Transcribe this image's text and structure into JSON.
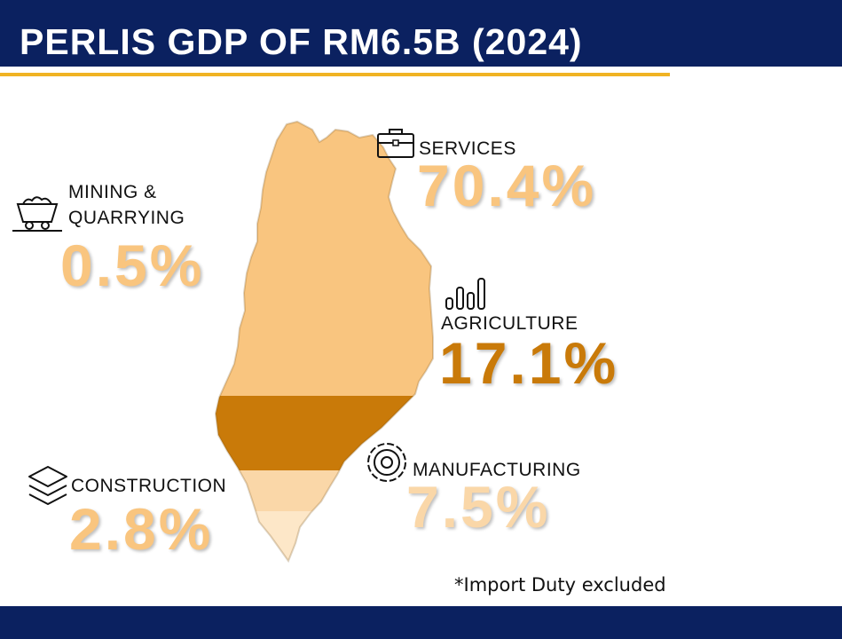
{
  "title": "PERLIS GDP OF RM6.5B (2024)",
  "note": "*Import Duty excluded",
  "colors": {
    "navy": "#0b2160",
    "gold_line": "#f0b323",
    "services": "#f9c57f",
    "agriculture": "#c97a09",
    "manufacturing": "#fad7a8",
    "construction": "#fde7c8",
    "mining": "#f9c57f"
  },
  "chart_data": {
    "type": "pie",
    "title": "PERLIS GDP OF RM6.5B (2024)",
    "unit": "%",
    "categories": [
      "SERVICES",
      "AGRICULTURE",
      "MANUFACTURING",
      "CONSTRUCTION",
      "MINING & QUARRYING"
    ],
    "values": [
      70.4,
      17.1,
      7.5,
      2.8,
      0.5
    ],
    "value_labels": [
      "70.4%",
      "17.1%",
      "7.5%",
      "2.8%",
      "0.5%"
    ],
    "annotation": "*Import Duty excluded"
  },
  "sectors": {
    "services": {
      "label": "SERVICES",
      "value": "70.4%",
      "icon": "briefcase-icon"
    },
    "agriculture": {
      "label": "AGRICULTURE",
      "value": "17.1%",
      "icon": "bar-chart-icon"
    },
    "manufacturing": {
      "label": "MANUFACTURING",
      "value": "7.5%",
      "icon": "gear-icon"
    },
    "construction": {
      "label": "CONSTRUCTION",
      "value": "2.8%",
      "icon": "layers-icon"
    },
    "mining": {
      "label_line1": "MINING &",
      "label_line2": "QUARRYING",
      "value": "0.5%",
      "icon": "mine-cart-icon"
    }
  }
}
